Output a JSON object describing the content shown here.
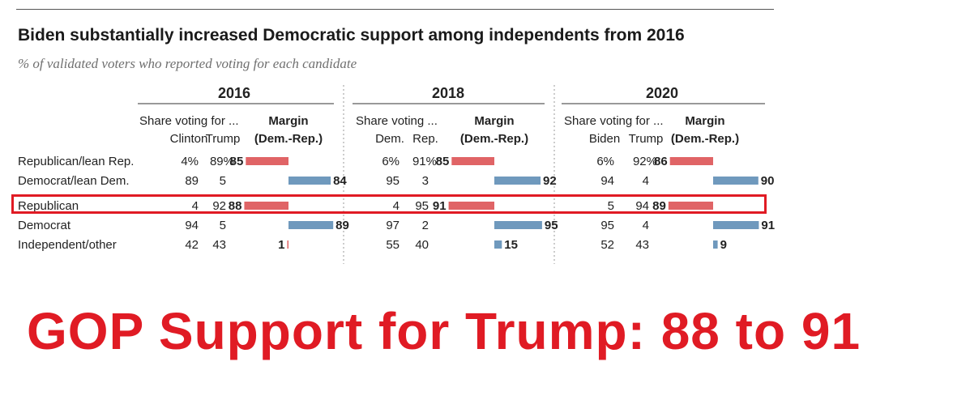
{
  "header": {
    "title": "Biden substantially increased Democratic support among independents from 2016",
    "subtitle": "% of validated voters who reported voting for each candidate"
  },
  "caption": "GOP Support for Trump: 88 to 91",
  "colors": {
    "rep": "#e06466",
    "dem": "#6f99bd",
    "highlight": "#e01b24"
  },
  "chart_data": {
    "type": "table",
    "title": "Biden substantially increased Democratic support among independents from 2016",
    "subtitle": "% of validated voters who reported voting for each candidate",
    "rows": [
      "Republican/lean Rep.",
      "Democrat/lean Dem.",
      "Republican",
      "Democrat",
      "Independent/other"
    ],
    "highlighted_row": "Republican",
    "panels": [
      {
        "year": "2016",
        "share_label": "Share voting for ...",
        "margin_label_1": "Margin",
        "margin_label_2": "(Dem.-Rep.)",
        "col1": "Clinton",
        "col2": "Trump",
        "col1_values": [
          "4%",
          "89",
          "4",
          "94",
          "42"
        ],
        "col2_values": [
          "89%",
          "5",
          "92",
          "5",
          "43"
        ],
        "margins": [
          {
            "value": 85,
            "party": "rep"
          },
          {
            "value": 84,
            "party": "dem"
          },
          {
            "value": 88,
            "party": "rep"
          },
          {
            "value": 89,
            "party": "dem"
          },
          {
            "value": 1,
            "party": "rep"
          }
        ]
      },
      {
        "year": "2018",
        "share_label": "Share voting ...",
        "margin_label_1": "Margin",
        "margin_label_2": "(Dem.-Rep.)",
        "col1": "Dem.",
        "col2": "Rep.",
        "col1_values": [
          "6%",
          "95",
          "4",
          "97",
          "55"
        ],
        "col2_values": [
          "91%",
          "3",
          "95",
          "2",
          "40"
        ],
        "margins": [
          {
            "value": 85,
            "party": "rep"
          },
          {
            "value": 92,
            "party": "dem"
          },
          {
            "value": 91,
            "party": "rep"
          },
          {
            "value": 95,
            "party": "dem"
          },
          {
            "value": 15,
            "party": "dem"
          }
        ]
      },
      {
        "year": "2020",
        "share_label": "Share voting for ...",
        "margin_label_1": "Margin",
        "margin_label_2": "(Dem.-Rep.)",
        "col1": "Biden",
        "col2": "Trump",
        "col1_values": [
          "6%",
          "94",
          "5",
          "95",
          "52"
        ],
        "col2_values": [
          "92%",
          "4",
          "94",
          "4",
          "43"
        ],
        "margins": [
          {
            "value": 86,
            "party": "rep"
          },
          {
            "value": 90,
            "party": "dem"
          },
          {
            "value": 89,
            "party": "rep"
          },
          {
            "value": 91,
            "party": "dem"
          },
          {
            "value": 9,
            "party": "dem"
          }
        ]
      }
    ]
  }
}
